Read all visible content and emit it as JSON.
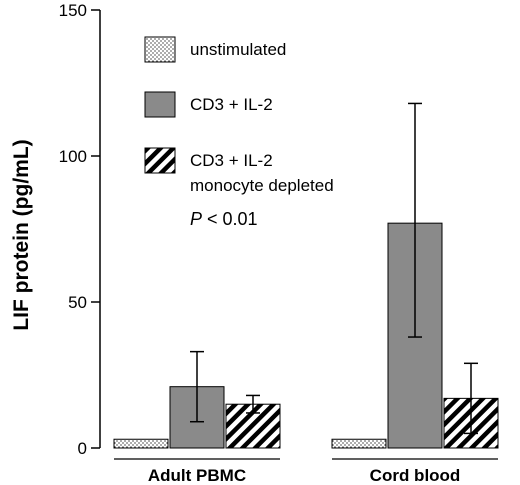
{
  "chart_data": {
    "type": "bar",
    "title": "",
    "xlabel": "",
    "ylabel": "LIF protein (pg/mL)",
    "ylim": [
      0,
      150
    ],
    "yticks": [
      0,
      50,
      100,
      150
    ],
    "categories": [
      "Adult PBMC",
      "Cord blood"
    ],
    "series": [
      {
        "name": "unstimulated",
        "values": [
          3,
          3
        ],
        "error_upper": [
          0,
          0
        ],
        "error_lower": [
          0,
          0
        ],
        "pattern": "dotted"
      },
      {
        "name": "CD3 + IL-2",
        "values": [
          21,
          77
        ],
        "error_upper": [
          12,
          41
        ],
        "error_lower": [
          12,
          39
        ],
        "pattern": "solid-gray"
      },
      {
        "name": "CD3 + IL-2 monocyte depleted",
        "name_lines": [
          "CD3 + IL-2",
          "monocyte depleted"
        ],
        "values": [
          15,
          17
        ],
        "error_upper": [
          3,
          12
        ],
        "error_lower": [
          3,
          12
        ],
        "pattern": "hatched"
      }
    ],
    "annotation": {
      "prefix": "P",
      "text": " < 0.01"
    },
    "grid": false,
    "legend_position": "top-left",
    "colors": {
      "solid_gray": "#8a8a8a",
      "axis": "#000000",
      "background": "#ffffff"
    }
  }
}
